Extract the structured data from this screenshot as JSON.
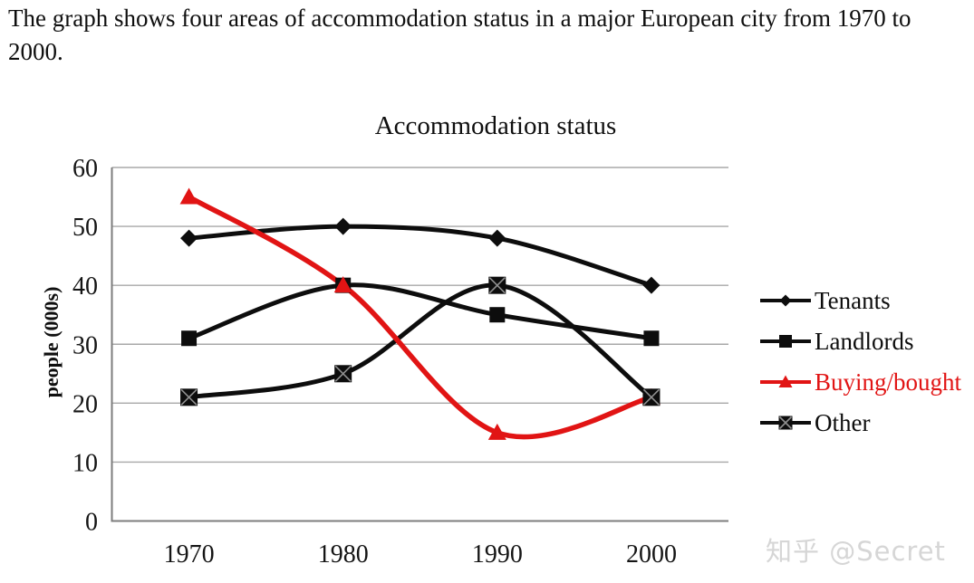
{
  "page": {
    "description": "The graph shows four areas of accommodation status in a major European city from 1970 to 2000.",
    "watermark": "知乎 @Secret"
  },
  "chart_data": {
    "type": "line",
    "title": "Accommodation status",
    "xlabel": "",
    "ylabel": "people (000s)",
    "categories": [
      "1970",
      "1980",
      "1990",
      "2000"
    ],
    "series": [
      {
        "name": "Tenants",
        "values": [
          48,
          50,
          48,
          40
        ],
        "color": "#0d0d0d",
        "marker": "diamond"
      },
      {
        "name": "Landlords",
        "values": [
          31,
          40,
          35,
          31
        ],
        "color": "#0d0d0d",
        "marker": "square"
      },
      {
        "name": "Buying/bought",
        "values": [
          55,
          40,
          15,
          21
        ],
        "color": "#e11414",
        "marker": "triangle"
      },
      {
        "name": "Other",
        "values": [
          21,
          25,
          40,
          21
        ],
        "color": "#0d0d0d",
        "marker": "square-x"
      }
    ],
    "ylim": [
      0,
      60
    ],
    "ytick_step": 10,
    "grid": true,
    "smoothed": true,
    "legend_position": "right",
    "colors": {
      "gridline": "#a8a8a8",
      "axis": "#7d7d7d"
    }
  }
}
